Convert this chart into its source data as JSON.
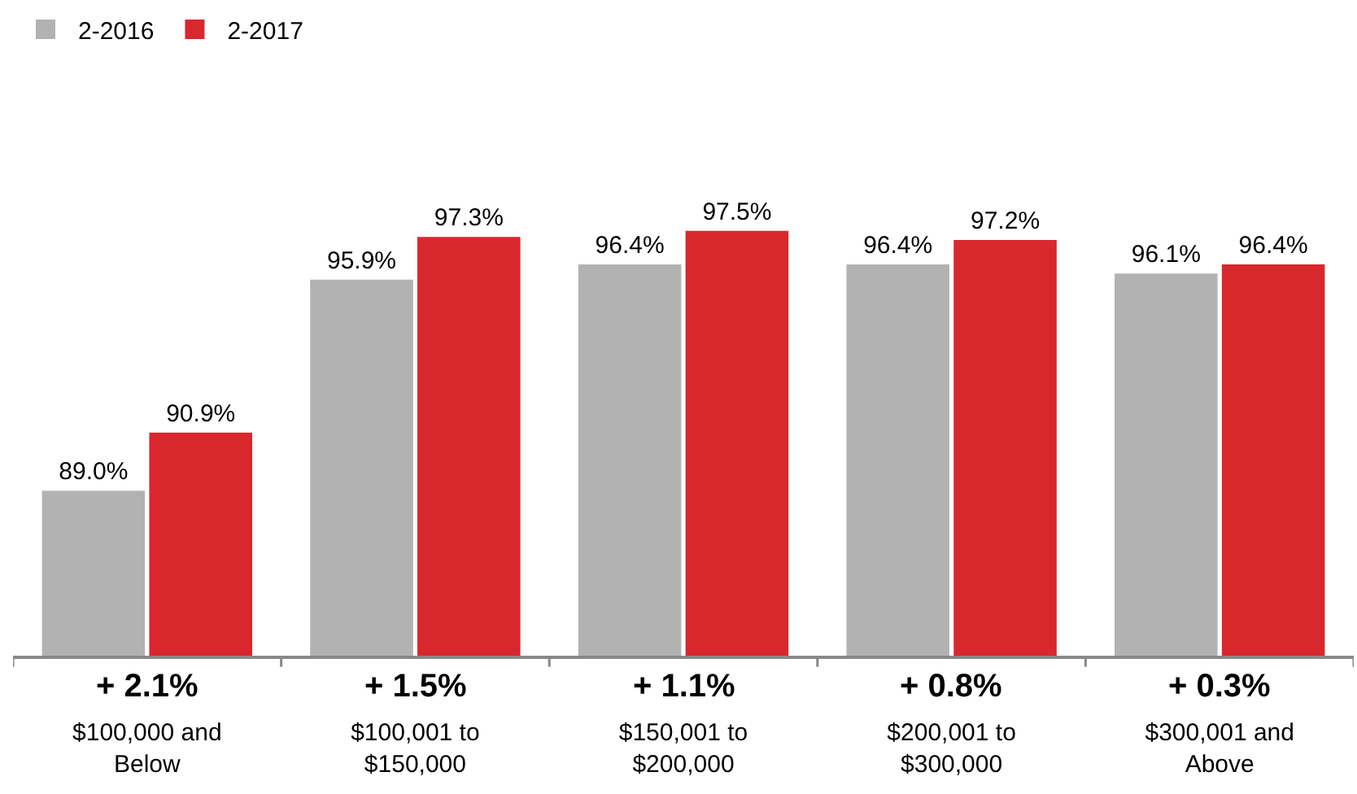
{
  "chart_data": {
    "type": "bar",
    "categories": [
      "$100,000 and Below",
      "$100,001 to $150,000",
      "$150,001 to $200,000",
      "$200,001 to $300,000",
      "$300,001 and Above"
    ],
    "series": [
      {
        "name": "2-2016",
        "color": "#b2b2b2",
        "values": [
          89.0,
          95.9,
          96.4,
          96.4,
          96.1
        ],
        "value_labels": [
          "89.0%",
          "95.9%",
          "96.4%",
          "96.4%",
          "96.1%"
        ]
      },
      {
        "name": "2-2017",
        "color": "#d9272e",
        "values": [
          90.9,
          97.3,
          97.5,
          97.2,
          96.4
        ],
        "value_labels": [
          "90.9%",
          "97.3%",
          "97.5%",
          "97.2%",
          "96.4%"
        ]
      }
    ],
    "legend": "top left",
    "grid": false,
    "annotations": [
      {
        "text": "+ 2.1%",
        "x": "$100,000 and Below"
      },
      {
        "text": "+ 1.5%",
        "x": "$100,001 to $150,000"
      },
      {
        "text": "+ 1.1%",
        "x": "$150,001 to $200,000"
      },
      {
        "text": "+ 0.8%",
        "x": "$200,001 to $300,000"
      },
      {
        "text": "+ 0.3%",
        "x": "$300,001 and Above"
      }
    ]
  }
}
